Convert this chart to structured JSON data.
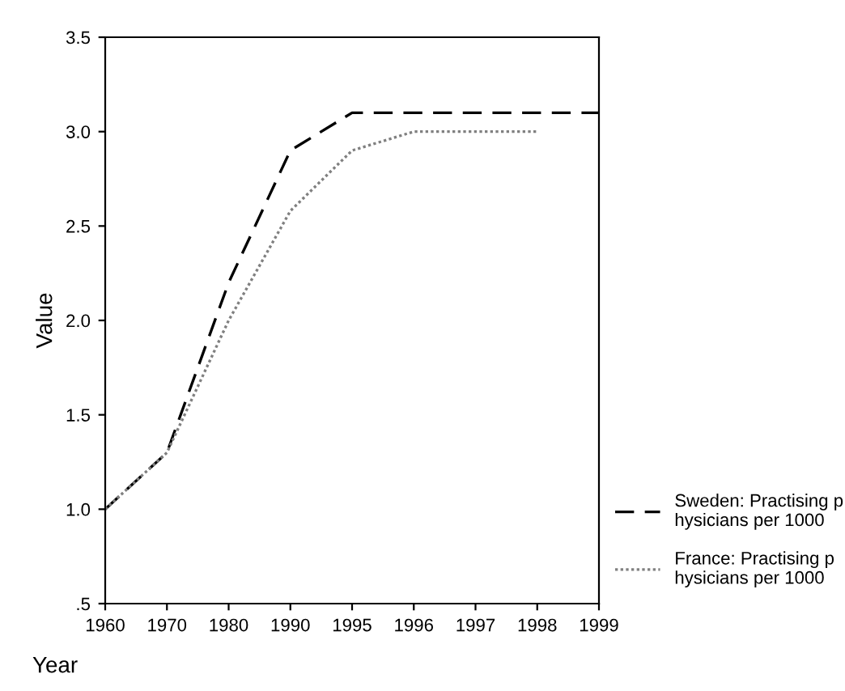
{
  "chart_data": {
    "type": "line",
    "xlabel": "Year",
    "ylabel": "Value",
    "categories": [
      "1960",
      "1970",
      "1980",
      "1990",
      "1995",
      "1996",
      "1997",
      "1998",
      "1999"
    ],
    "series": [
      {
        "name": "Sweden: Practising p\nhysicians per 1000",
        "color": "#000000",
        "line_style": "dashed",
        "values": [
          1.0,
          1.3,
          2.2,
          2.9,
          3.1,
          3.1,
          3.1,
          3.1,
          3.1
        ]
      },
      {
        "name": "France: Practising p\nhysicians per 1000",
        "color": "#808080",
        "line_style": "dotted",
        "values": [
          1.0,
          1.3,
          2.0,
          2.58,
          2.9,
          3.0,
          3.0,
          3.0,
          null
        ]
      }
    ],
    "ylim": [
      0.5,
      3.5
    ],
    "yticks": [
      {
        "value": 0.5,
        "label": ".5"
      },
      {
        "value": 1.0,
        "label": "1.0"
      },
      {
        "value": 1.5,
        "label": "1.5"
      },
      {
        "value": 2.0,
        "label": "2.0"
      },
      {
        "value": 2.5,
        "label": "2.5"
      },
      {
        "value": 3.0,
        "label": "3.0"
      },
      {
        "value": 3.5,
        "label": "3.5"
      }
    ],
    "grid": false,
    "legend": "right",
    "marker": "none"
  }
}
